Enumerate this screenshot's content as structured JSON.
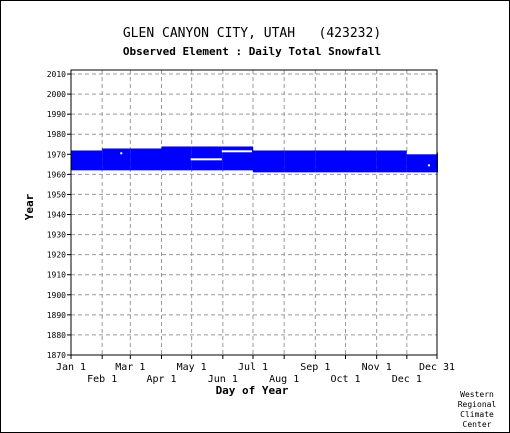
{
  "chart_data": {
    "type": "bar",
    "title": "GLEN CANYON CITY, UTAH   (423232)",
    "subtitle": "Observed Element : Daily Total Snowfall",
    "xlabel": "Day of Year",
    "ylabel": "Year",
    "xlim": [
      1,
      365
    ],
    "ylim": [
      1870,
      2012
    ],
    "x_ticks_top_row": [
      {
        "day": 1,
        "label": "Jan 1"
      },
      {
        "day": 60,
        "label": "Mar 1"
      },
      {
        "day": 121,
        "label": "May 1"
      },
      {
        "day": 182,
        "label": "Jul 1"
      },
      {
        "day": 244,
        "label": "Sep 1"
      },
      {
        "day": 305,
        "label": "Nov 1"
      },
      {
        "day": 365,
        "label": "Dec 31"
      }
    ],
    "x_ticks_bottom_row": [
      {
        "day": 32,
        "label": "Feb 1"
      },
      {
        "day": 91,
        "label": "Apr 1"
      },
      {
        "day": 152,
        "label": "Jun 1"
      },
      {
        "day": 213,
        "label": "Aug 1"
      },
      {
        "day": 274,
        "label": "Oct 1"
      },
      {
        "day": 335,
        "label": "Dec 1"
      }
    ],
    "y_ticks": [
      1870,
      1880,
      1890,
      1900,
      1910,
      1920,
      1930,
      1940,
      1950,
      1960,
      1970,
      1980,
      1990,
      2000,
      2010
    ],
    "grid": true,
    "bar_color": "#0000ff",
    "gap_color": "#ffffff",
    "coverage": [
      {
        "start_day": 1,
        "end_day": 31,
        "start_year": 1962,
        "end_year": 1971.9
      },
      {
        "start_day": 32,
        "end_day": 59,
        "start_year": 1962,
        "end_year": 1972.9
      },
      {
        "start_day": 60,
        "end_day": 90,
        "start_year": 1962,
        "end_year": 1972.9
      },
      {
        "start_day": 91,
        "end_day": 120,
        "start_year": 1962,
        "end_year": 1973.9
      },
      {
        "start_day": 121,
        "end_day": 151,
        "start_year": 1962,
        "end_year": 1973.9
      },
      {
        "start_day": 152,
        "end_day": 181,
        "start_year": 1962,
        "end_year": 1973.9
      },
      {
        "start_day": 182,
        "end_day": 212,
        "start_year": 1961,
        "end_year": 1971.9
      },
      {
        "start_day": 213,
        "end_day": 243,
        "start_year": 1961,
        "end_year": 1971.9
      },
      {
        "start_day": 244,
        "end_day": 273,
        "start_year": 1961,
        "end_year": 1971.9
      },
      {
        "start_day": 274,
        "end_day": 304,
        "start_year": 1961,
        "end_year": 1971.9
      },
      {
        "start_day": 305,
        "end_day": 334,
        "start_year": 1961,
        "end_year": 1971.9
      },
      {
        "start_day": 335,
        "end_day": 365,
        "start_year": 1961,
        "end_year": 1970.9
      }
    ],
    "gaps": [
      {
        "start_day": 120,
        "end_day": 151,
        "year": 1967
      },
      {
        "start_day": 151,
        "end_day": 181,
        "year": 1971
      },
      {
        "start_day": 335,
        "end_day": 365,
        "year": 1970
      },
      {
        "start_day": 50,
        "end_day": 51,
        "year": 1970
      },
      {
        "start_day": 356,
        "end_day": 357,
        "year": 1964
      }
    ]
  },
  "credit_lines": [
    "Western",
    "Regional",
    "Climate",
    "Center"
  ]
}
